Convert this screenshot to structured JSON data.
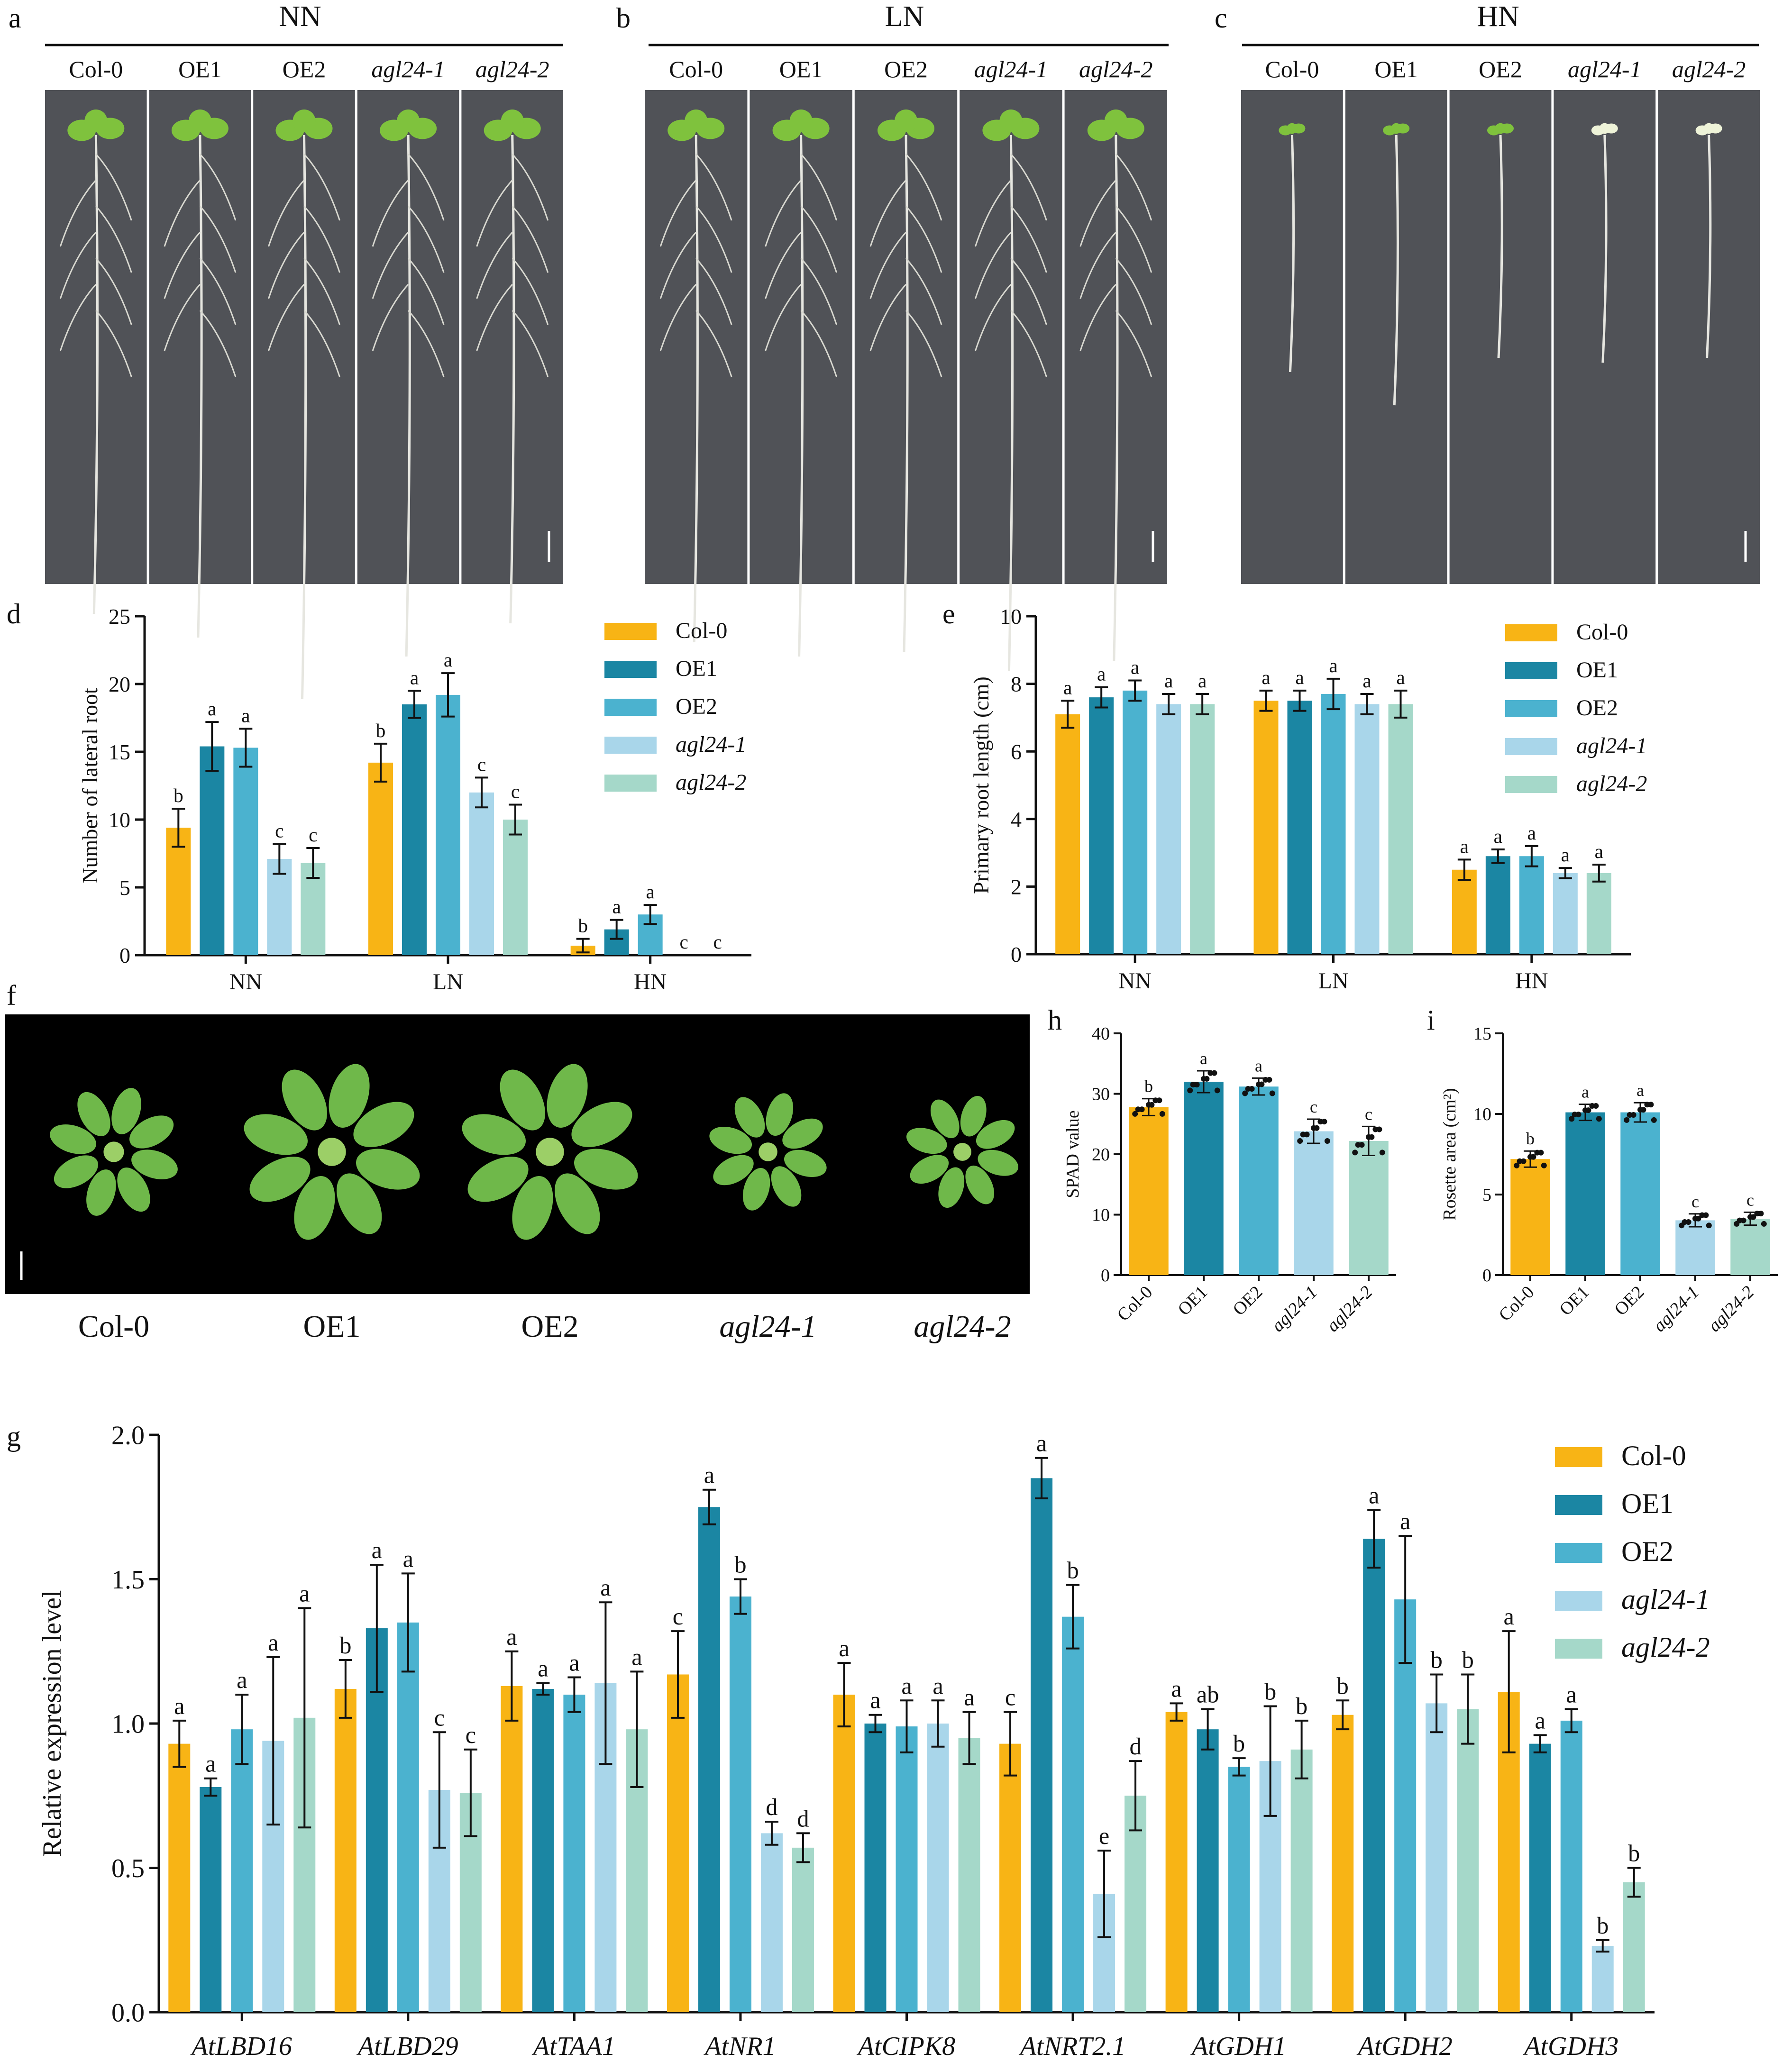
{
  "colors": {
    "Col-0": "#f8b415",
    "OE1": "#1b86a3",
    "OE2": "#4bb2cf",
    "agl24-1": "#a9d6ea",
    "agl24-2": "#a5d8c9",
    "photo_bg": "#505257",
    "photo_black": "#000000",
    "leaf": "#7fc23d"
  },
  "panels": {
    "a": {
      "letter": "a",
      "condition": "NN"
    },
    "b": {
      "letter": "b",
      "condition": "LN"
    },
    "c": {
      "letter": "c",
      "condition": "HN"
    },
    "d": {
      "letter": "d"
    },
    "e": {
      "letter": "e"
    },
    "f": {
      "letter": "f"
    },
    "g": {
      "letter": "g"
    },
    "h": {
      "letter": "h"
    },
    "i": {
      "letter": "i"
    }
  },
  "genotypes": [
    "Col-0",
    "OE1",
    "OE2",
    "agl24-1",
    "agl24-2"
  ],
  "italic_genotypes": [
    "agl24-1",
    "agl24-2"
  ],
  "chart_data": [
    {
      "id": "d",
      "type": "bar",
      "ylabel": "Number of lateral root",
      "ylim": [
        0,
        25
      ],
      "yticks": [
        0,
        5,
        10,
        15,
        20,
        25
      ],
      "categories": [
        "NN",
        "LN",
        "HN"
      ],
      "series": [
        {
          "name": "Col-0",
          "values": [
            9.4,
            14.2,
            0.7
          ],
          "errors": [
            1.4,
            1.4,
            0.5
          ],
          "letters": [
            "b",
            "b",
            "b"
          ]
        },
        {
          "name": "OE1",
          "values": [
            15.4,
            18.5,
            1.9
          ],
          "errors": [
            1.8,
            1.0,
            0.7
          ],
          "letters": [
            "a",
            "a",
            "a"
          ]
        },
        {
          "name": "OE2",
          "values": [
            15.3,
            19.2,
            3.0
          ],
          "errors": [
            1.4,
            1.6,
            0.7
          ],
          "letters": [
            "a",
            "a",
            "a"
          ]
        },
        {
          "name": "agl24-1",
          "values": [
            7.1,
            12.0,
            0
          ],
          "errors": [
            1.1,
            1.1,
            0
          ],
          "letters": [
            "c",
            "c",
            "c"
          ]
        },
        {
          "name": "agl24-2",
          "values": [
            6.8,
            10.0,
            0
          ],
          "errors": [
            1.1,
            1.1,
            0
          ],
          "letters": [
            "c",
            "c",
            "c"
          ]
        }
      ]
    },
    {
      "id": "e",
      "type": "bar",
      "ylabel": "Primary root length (cm)",
      "ylim": [
        0,
        10
      ],
      "yticks": [
        0,
        2,
        4,
        6,
        8,
        10
      ],
      "categories": [
        "NN",
        "LN",
        "HN"
      ],
      "series": [
        {
          "name": "Col-0",
          "values": [
            7.1,
            7.5,
            2.5
          ],
          "errors": [
            0.4,
            0.3,
            0.3
          ],
          "letters": [
            "a",
            "a",
            "a"
          ]
        },
        {
          "name": "OE1",
          "values": [
            7.6,
            7.5,
            2.9
          ],
          "errors": [
            0.3,
            0.3,
            0.2
          ],
          "letters": [
            "a",
            "a",
            "a"
          ]
        },
        {
          "name": "OE2",
          "values": [
            7.8,
            7.7,
            2.9
          ],
          "errors": [
            0.3,
            0.45,
            0.3
          ],
          "letters": [
            "a",
            "a",
            "a"
          ]
        },
        {
          "name": "agl24-1",
          "values": [
            7.4,
            7.4,
            2.4
          ],
          "errors": [
            0.3,
            0.3,
            0.15
          ],
          "letters": [
            "a",
            "a",
            "a"
          ]
        },
        {
          "name": "agl24-2",
          "values": [
            7.4,
            7.4,
            2.4
          ],
          "errors": [
            0.3,
            0.4,
            0.25
          ],
          "letters": [
            "a",
            "a",
            "a"
          ]
        }
      ]
    },
    {
      "id": "h",
      "type": "bar",
      "ylabel": "SPAD value",
      "ylim": [
        0,
        40
      ],
      "yticks": [
        0,
        10,
        20,
        30,
        40
      ],
      "categories": [
        "Col-0",
        "OE1",
        "OE2",
        "agl24-1",
        "agl24-2"
      ],
      "values": [
        27.8,
        32.0,
        31.2,
        23.8,
        22.2
      ],
      "errors": [
        1.4,
        1.8,
        1.4,
        2.0,
        2.4
      ],
      "letters": [
        "b",
        "a",
        "a",
        "c",
        "c"
      ]
    },
    {
      "id": "i",
      "type": "bar",
      "ylabel": "Rosette area (cm²)",
      "ylim": [
        0,
        15
      ],
      "yticks": [
        0,
        5,
        10,
        15
      ],
      "categories": [
        "Col-0",
        "OE1",
        "OE2",
        "agl24-1",
        "agl24-2"
      ],
      "values": [
        7.2,
        10.1,
        10.1,
        3.4,
        3.5
      ],
      "errors": [
        0.5,
        0.5,
        0.6,
        0.4,
        0.4
      ],
      "letters": [
        "b",
        "a",
        "a",
        "c",
        "c"
      ]
    },
    {
      "id": "g",
      "type": "bar",
      "ylabel": "Relative expression level",
      "ylim": [
        0,
        2.0
      ],
      "yticks": [
        "0.0",
        "0.5",
        "1.0",
        "1.5",
        "2.0"
      ],
      "categories": [
        "AtLBD16",
        "AtLBD29",
        "AtTAA1",
        "AtNR1",
        "AtCIPK8",
        "AtNRT2.1",
        "AtGDH1",
        "AtGDH2",
        "AtGDH3"
      ],
      "series": [
        {
          "name": "Col-0",
          "values": [
            0.93,
            1.12,
            1.13,
            1.17,
            1.1,
            0.93,
            1.04,
            1.03,
            1.11
          ],
          "errors": [
            0.08,
            0.1,
            0.12,
            0.15,
            0.11,
            0.11,
            0.03,
            0.05,
            0.21
          ],
          "letters": [
            "a",
            "b",
            "a",
            "c",
            "a",
            "c",
            "a",
            "b",
            "a"
          ]
        },
        {
          "name": "OE1",
          "values": [
            0.78,
            1.33,
            1.12,
            1.75,
            1.0,
            1.85,
            0.98,
            1.64,
            0.93
          ],
          "errors": [
            0.03,
            0.22,
            0.02,
            0.06,
            0.03,
            0.07,
            0.07,
            0.1,
            0.03
          ],
          "letters": [
            "a",
            "a",
            "a",
            "a",
            "a",
            "a",
            "ab",
            "a",
            "a"
          ]
        },
        {
          "name": "OE2",
          "values": [
            0.98,
            1.35,
            1.1,
            1.44,
            0.99,
            1.37,
            0.85,
            1.43,
            1.01
          ],
          "errors": [
            0.12,
            0.17,
            0.06,
            0.06,
            0.09,
            0.11,
            0.03,
            0.22,
            0.04
          ],
          "letters": [
            "a",
            "a",
            "a",
            "b",
            "a",
            "b",
            "b",
            "a",
            "a"
          ]
        },
        {
          "name": "agl24-1",
          "values": [
            0.94,
            0.77,
            1.14,
            0.62,
            1.0,
            0.41,
            0.87,
            1.07,
            0.23
          ],
          "errors": [
            0.29,
            0.2,
            0.28,
            0.04,
            0.08,
            0.15,
            0.19,
            0.1,
            0.02
          ],
          "letters": [
            "a",
            "c",
            "a",
            "d",
            "a",
            "e",
            "b",
            "b",
            "b"
          ]
        },
        {
          "name": "agl24-2",
          "values": [
            1.02,
            0.76,
            0.98,
            0.57,
            0.95,
            0.75,
            0.91,
            1.05,
            0.45
          ],
          "errors": [
            0.38,
            0.15,
            0.2,
            0.05,
            0.09,
            0.12,
            0.1,
            0.12,
            0.05
          ],
          "letters": [
            "a",
            "c",
            "a",
            "d",
            "a",
            "d",
            "b",
            "b",
            "b"
          ]
        }
      ]
    }
  ]
}
